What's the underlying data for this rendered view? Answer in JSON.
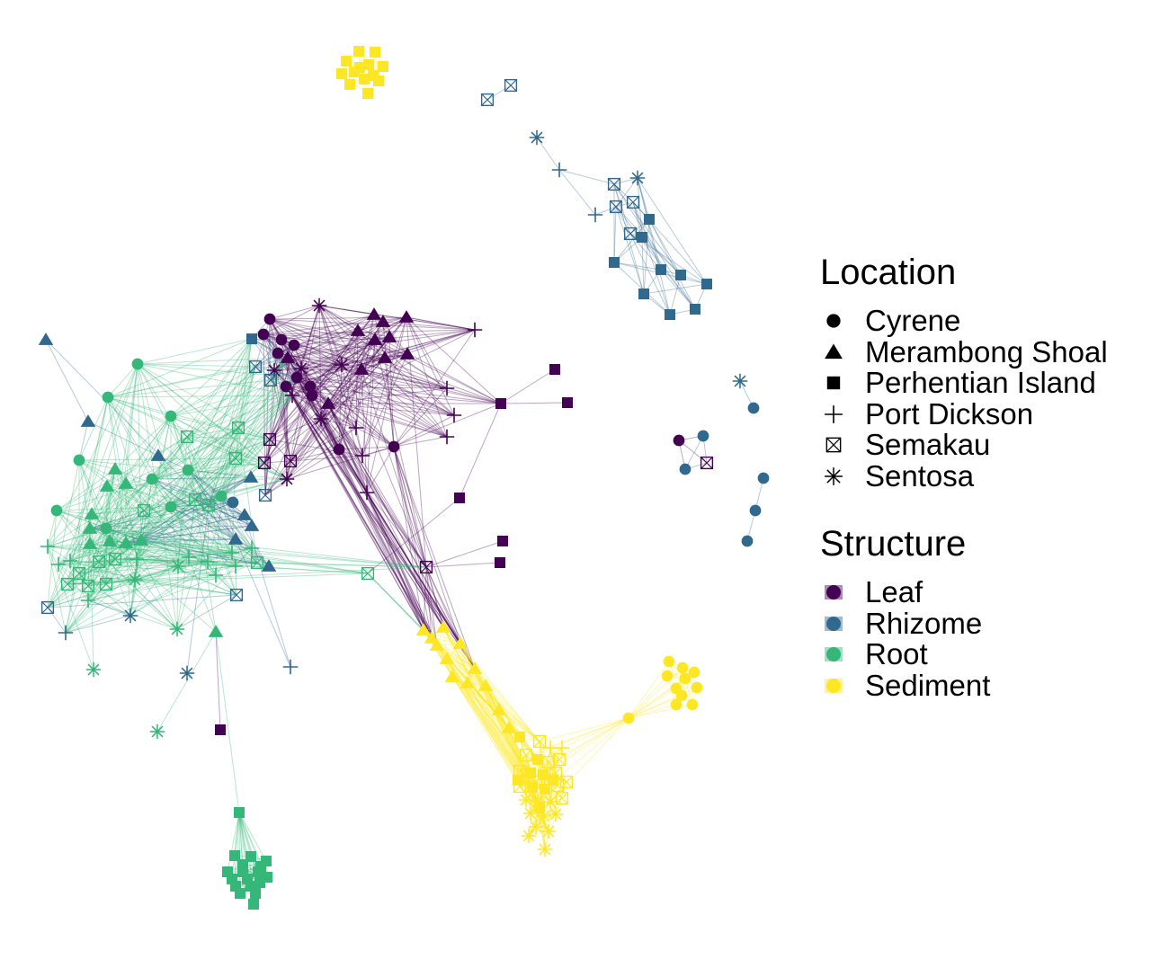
{
  "colors": {
    "leaf": "#440154",
    "rhizome": "#31688e",
    "root": "#35b779",
    "sediment": "#fde725"
  },
  "legend": {
    "location": {
      "title": "Location",
      "items": [
        {
          "label": "Cyrene",
          "shape": "circle"
        },
        {
          "label": "Merambong Shoal",
          "shape": "triangle"
        },
        {
          "label": "Perhentian Island",
          "shape": "square"
        },
        {
          "label": "Port Dickson",
          "shape": "plus"
        },
        {
          "label": "Semakau",
          "shape": "box-x"
        },
        {
          "label": "Sentosa",
          "shape": "asterisk"
        }
      ]
    },
    "structure": {
      "title": "Structure",
      "items": [
        {
          "label": "Leaf",
          "color": "#440154"
        },
        {
          "label": "Rhizome",
          "color": "#31688e"
        },
        {
          "label": "Root",
          "color": "#35b779"
        },
        {
          "label": "Sediment",
          "color": "#fde725"
        }
      ]
    }
  }
}
